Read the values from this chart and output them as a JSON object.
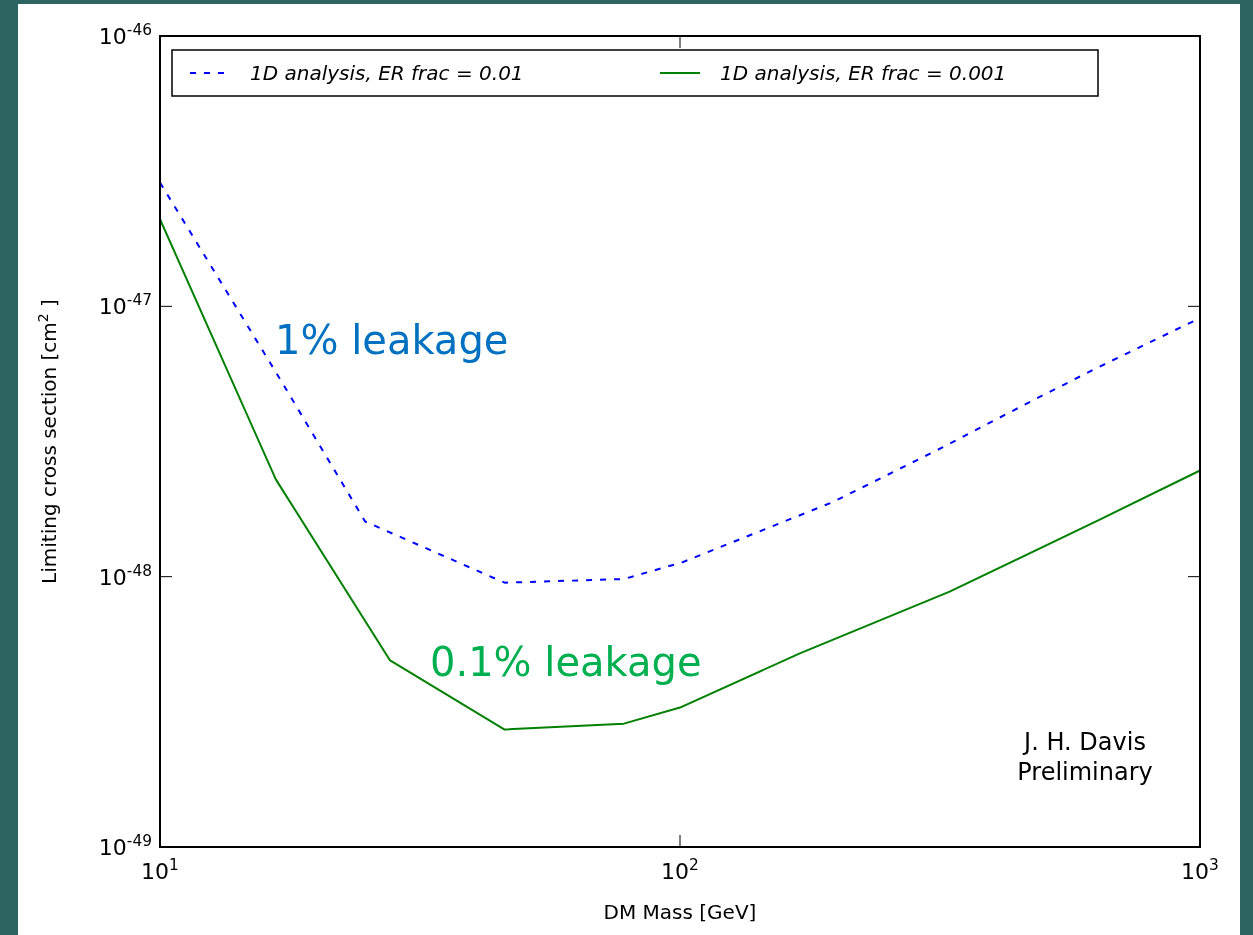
{
  "chart_data": {
    "type": "line",
    "xlabel": "DM Mass [GeV]",
    "ylabel": "Limiting cross section [cm$^{2}$ ]",
    "log": "xy",
    "xlim": [
      10,
      1000
    ],
    "ylim": [
      1e-49,
      1e-46
    ],
    "xticks": [
      {
        "value": 10,
        "label": "10$^{1}$"
      },
      {
        "value": 100,
        "label": "10$^{2}$"
      },
      {
        "value": 1000,
        "label": "10$^{3}$"
      }
    ],
    "yticks": [
      {
        "value": 1e-49,
        "label": "10$^{-49}$"
      },
      {
        "value": 1e-48,
        "label": "10$^{-48}$"
      },
      {
        "value": 1e-47,
        "label": "10$^{-47}$"
      },
      {
        "value": 1e-46,
        "label": "10$^{-46}$"
      }
    ],
    "grid": false,
    "legend": "top",
    "marker": "none",
    "series": [
      {
        "name": "1D analysis, ER frac = 0.01",
        "color": "#0000ff",
        "line_style": "dashed",
        "x": [
          10,
          17,
          24.8,
          46,
          78,
          101,
          197,
          319,
          478,
          643,
          1000
        ],
        "values": [
          2.87e-47,
          5.4e-48,
          1.6e-48,
          9.5e-49,
          9.8e-49,
          1.13e-48,
          1.89e-48,
          3e-48,
          4.5e-48,
          6e-48,
          9.05e-48
        ]
      },
      {
        "name": "1D analysis, ER frac = 0.001",
        "color": "#008000",
        "line_style": "solid",
        "x": [
          10,
          16.7,
          27.7,
          46,
          78,
          100,
          170,
          330,
          643,
          1000
        ],
        "values": [
          2.1e-47,
          2.29e-48,
          4.9e-49,
          2.72e-49,
          2.86e-49,
          3.28e-49,
          5.2e-49,
          8.8e-49,
          1.63e-48,
          2.47e-48
        ]
      }
    ],
    "annotations": [
      "1% leakage",
      "0.1% leakage",
      "J. H. Davis\nPreliminary"
    ]
  }
}
